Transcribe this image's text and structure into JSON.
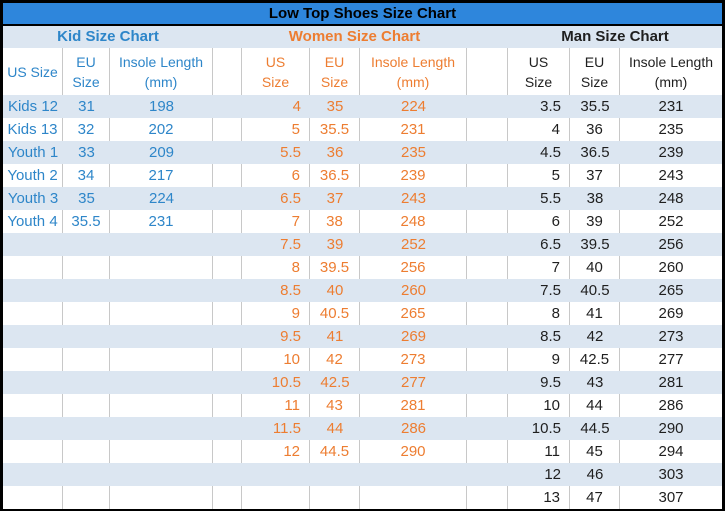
{
  "colors": {
    "title_bar_bg": "#2E86DC",
    "band_row_bg": "#DCE6F1",
    "kid_text": "#2E86C9",
    "women_text": "#ED7D31",
    "man_text": "#1F1F1F",
    "grid_line": "#C8C8C8",
    "outer_border": "#000000"
  },
  "chart_data": {
    "type": "table",
    "title": "Low Top Shoes Size Chart",
    "sections": [
      {
        "name": "Kid Size Chart",
        "columns": [
          "US Size",
          "EU Size",
          "Insole Length (mm)"
        ],
        "rows": [
          [
            "Kids 12",
            "31",
            "198"
          ],
          [
            "Kids 13",
            "32",
            "202"
          ],
          [
            "Youth 1",
            "33",
            "209"
          ],
          [
            "Youth 2",
            "34",
            "217"
          ],
          [
            "Youth 3",
            "35",
            "224"
          ],
          [
            "Youth 4",
            "35.5",
            "231"
          ]
        ]
      },
      {
        "name": "Women Size Chart",
        "columns": [
          "US Size",
          "EU Size",
          "Insole Length (mm)"
        ],
        "rows": [
          [
            "4",
            "35",
            "224"
          ],
          [
            "5",
            "35.5",
            "231"
          ],
          [
            "5.5",
            "36",
            "235"
          ],
          [
            "6",
            "36.5",
            "239"
          ],
          [
            "6.5",
            "37",
            "243"
          ],
          [
            "7",
            "38",
            "248"
          ],
          [
            "7.5",
            "39",
            "252"
          ],
          [
            "8",
            "39.5",
            "256"
          ],
          [
            "8.5",
            "40",
            "260"
          ],
          [
            "9",
            "40.5",
            "265"
          ],
          [
            "9.5",
            "41",
            "269"
          ],
          [
            "10",
            "42",
            "273"
          ],
          [
            "10.5",
            "42.5",
            "277"
          ],
          [
            "11",
            "43",
            "281"
          ],
          [
            "11.5",
            "44",
            "286"
          ],
          [
            "12",
            "44.5",
            "290"
          ]
        ]
      },
      {
        "name": "Man Size Chart",
        "columns": [
          "US Size",
          "EU Size",
          "Insole Length (mm)"
        ],
        "rows": [
          [
            "3.5",
            "35.5",
            "231"
          ],
          [
            "4",
            "36",
            "235"
          ],
          [
            "4.5",
            "36.5",
            "239"
          ],
          [
            "5",
            "37",
            "243"
          ],
          [
            "5.5",
            "38",
            "248"
          ],
          [
            "6",
            "39",
            "252"
          ],
          [
            "6.5",
            "39.5",
            "256"
          ],
          [
            "7",
            "40",
            "260"
          ],
          [
            "7.5",
            "40.5",
            "265"
          ],
          [
            "8",
            "41",
            "269"
          ],
          [
            "8.5",
            "42",
            "273"
          ],
          [
            "9",
            "42.5",
            "277"
          ],
          [
            "9.5",
            "43",
            "281"
          ],
          [
            "10",
            "44",
            "286"
          ],
          [
            "10.5",
            "44.5",
            "290"
          ],
          [
            "11",
            "45",
            "294"
          ],
          [
            "12",
            "46",
            "303"
          ],
          [
            "13",
            "47",
            "307"
          ]
        ]
      }
    ]
  }
}
